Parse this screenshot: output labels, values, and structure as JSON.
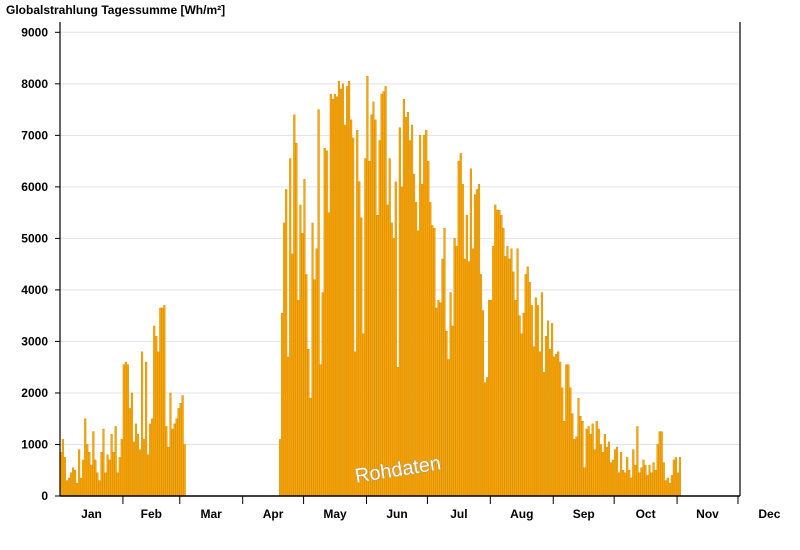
{
  "chart_data": {
    "type": "bar",
    "title": "Globalstrahlung Tagessumme [Wh/m²]",
    "ylim": [
      0,
      9200
    ],
    "yticks": [
      0,
      1000,
      2000,
      3000,
      4000,
      5000,
      6000,
      7000,
      8000,
      9000
    ],
    "grid": true,
    "bar_color": "#FFA500",
    "bar_edge_color": "#C08000",
    "month_labels": [
      "Jan",
      "Feb",
      "Mar",
      "Apr",
      "May",
      "Jun",
      "Jul",
      "Aug",
      "Sep",
      "Oct",
      "Nov",
      "Dec"
    ],
    "month_days": [
      31,
      28,
      31,
      30,
      31,
      30,
      31,
      31,
      30,
      31,
      30,
      31
    ],
    "watermark": "Rohdaten",
    "daily_values": [
      850,
      1100,
      750,
      300,
      350,
      450,
      550,
      500,
      250,
      900,
      350,
      700,
      1500,
      1000,
      850,
      600,
      1250,
      700,
      450,
      300,
      850,
      1300,
      450,
      800,
      700,
      1200,
      850,
      1350,
      450,
      750,
      1100,
      2550,
      2600,
      2550,
      1700,
      2000,
      1050,
      1400,
      1200,
      900,
      2800,
      1100,
      2600,
      800,
      1400,
      1500,
      3300,
      3100,
      2800,
      3650,
      3650,
      3700,
      1350,
      950,
      2000,
      1300,
      1400,
      1500,
      1700,
      1800,
      1950,
      1000,
      0,
      0,
      0,
      0,
      0,
      0,
      0,
      0,
      0,
      0,
      0,
      0,
      0,
      0,
      0,
      0,
      0,
      0,
      0,
      0,
      0,
      0,
      0,
      0,
      0,
      0,
      0,
      0,
      0,
      0,
      0,
      0,
      0,
      0,
      0,
      0,
      0,
      0,
      0,
      0,
      0,
      0,
      0,
      0,
      0,
      0,
      1100,
      3550,
      5300,
      5950,
      2700,
      6550,
      4700,
      7400,
      6850,
      3800,
      5650,
      5100,
      6150,
      4300,
      2850,
      1900,
      5300,
      4200,
      4800,
      7500,
      2550,
      3950,
      6750,
      6700,
      5500,
      7800,
      7700,
      7800,
      7750,
      8050,
      7900,
      8000,
      7200,
      7950,
      8050,
      7300,
      6950,
      2800,
      7100,
      6100,
      5400,
      3150,
      6550,
      8150,
      6500,
      7400,
      7650,
      7300,
      5450,
      6900,
      7800,
      7850,
      7950,
      5650,
      6550,
      5300,
      5000,
      6100,
      2500,
      7150,
      6000,
      7700,
      7350,
      7450,
      6900,
      7200,
      6250,
      5700,
      5150,
      7000,
      6050,
      7000,
      7100,
      6500,
      5700,
      5250,
      5200,
      3650,
      3800,
      3750,
      4600,
      5200,
      3200,
      2650,
      3950,
      3300,
      5000,
      4850,
      6500,
      6650,
      6050,
      4600,
      5450,
      4550,
      6350,
      4800,
      5850,
      5950,
      6050,
      4300,
      3600,
      2200,
      2300,
      3800,
      3800,
      4850,
      5650,
      5550,
      5550,
      5450,
      5200,
      4650,
      4850,
      4600,
      4800,
      4350,
      3800,
      4800,
      3500,
      3150,
      3550,
      4300,
      4450,
      4150,
      3700,
      2900,
      3850,
      3700,
      2800,
      3950,
      2400,
      3100,
      3400,
      2850,
      3350,
      2700,
      2750,
      2800,
      2600,
      2100,
      1450,
      2550,
      2550,
      2100,
      1600,
      1100,
      1150,
      1900,
      1550,
      1450,
      550,
      1300,
      1350,
      1200,
      1400,
      900,
      1450,
      1300,
      1000,
      850,
      1200,
      950,
      1050,
      650,
      700,
      900,
      950,
      450,
      850,
      500,
      450,
      750,
      500,
      350,
      900,
      600,
      1350,
      450,
      550,
      700,
      600,
      400,
      600,
      450,
      650,
      500,
      1000,
      1250,
      1250,
      650,
      300,
      350,
      250,
      400,
      700,
      750,
      450,
      750,
      0,
      0,
      0,
      0,
      0,
      0,
      0,
      0,
      0,
      0,
      0,
      0,
      0,
      0,
      0,
      0,
      0,
      0,
      0,
      0,
      0,
      0,
      0,
      0,
      0,
      0,
      0,
      0,
      0
    ]
  }
}
